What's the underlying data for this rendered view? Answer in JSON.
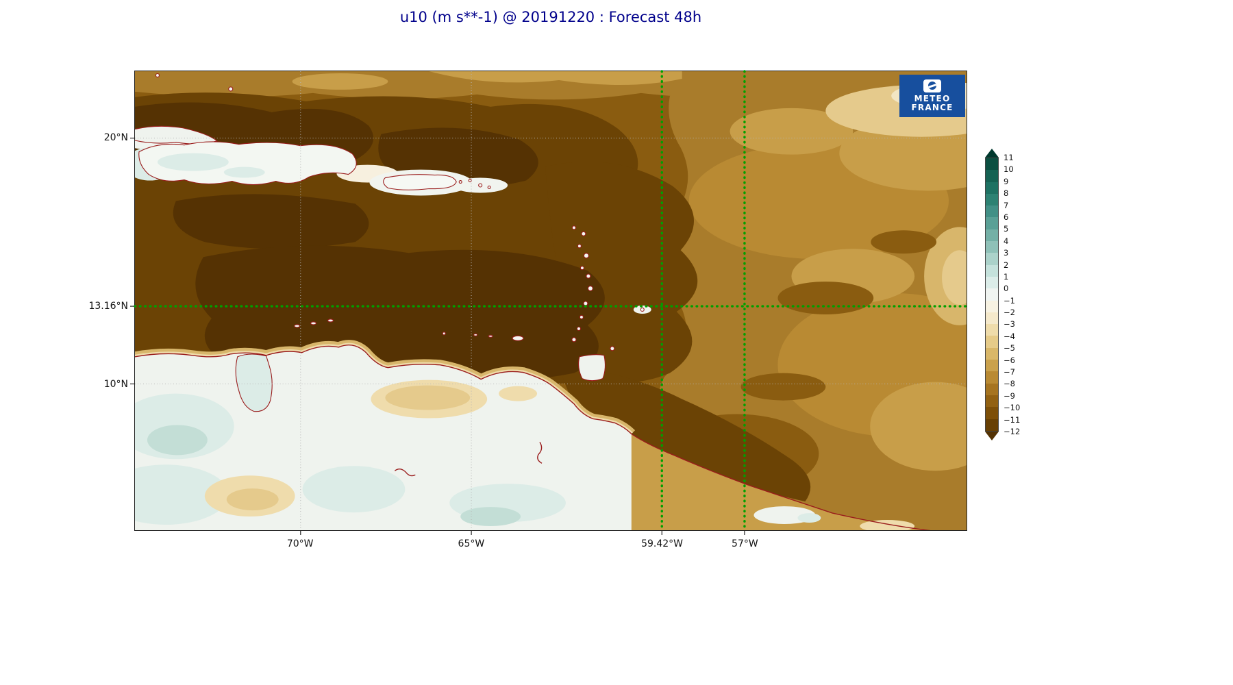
{
  "title": "u10 (m s**-1) @ 20191220 : Forecast 48h",
  "logo": {
    "line1": "METEO",
    "line2": "FRANCE"
  },
  "chart_data": {
    "type": "heatmap",
    "variable": "u10",
    "units": "m s**-1",
    "run_date": "20191220",
    "forecast": "48h",
    "title": "u10 (m s**-1) @ 20191220 : Forecast 48h",
    "lon_range": [
      -74.85,
      -50.5
    ],
    "lat_range": [
      4.05,
      22.72
    ],
    "x_ticks": [
      {
        "value": -70,
        "label": "70°W"
      },
      {
        "value": -65,
        "label": "65°W"
      },
      {
        "value": -59.42,
        "label": "59.42°W"
      },
      {
        "value": -57,
        "label": "57°W"
      }
    ],
    "y_ticks": [
      {
        "value": 20,
        "label": "20°N"
      },
      {
        "value": 13.16,
        "label": "13.16°N"
      },
      {
        "value": 10,
        "label": "10°N"
      }
    ],
    "gridlines": {
      "lons": [
        -70,
        -65
      ],
      "lats": [
        20,
        10
      ]
    },
    "crosshair": {
      "color": "#00a000",
      "lat": 13.16,
      "lons": [
        -59.42,
        -57
      ]
    },
    "colorbar": {
      "ticks": [
        "11",
        "10",
        "9",
        "8",
        "7",
        "6",
        "5",
        "4",
        "3",
        "2",
        "1",
        "0",
        "−1",
        "−2",
        "−3",
        "−4",
        "−5",
        "−6",
        "−7",
        "−8",
        "−9",
        "−10",
        "−11",
        "−12"
      ],
      "over_color": "#00392e",
      "under_color": "#533203",
      "segment_colors": [
        "#0b4f41",
        "#156253",
        "#1e7263",
        "#2d8273",
        "#429086",
        "#5aa096",
        "#74b0a6",
        "#8fc1b8",
        "#abd2ca",
        "#c5e2dc",
        "#dcede9",
        "#f0f4f1",
        "#f7f2e2",
        "#f5e9cb",
        "#efdcab",
        "#e6cb89",
        "#d9b769",
        "#caa14c",
        "#b98a33",
        "#a67420",
        "#926112",
        "#7d4f08",
        "#684003"
      ]
    },
    "field_description": "Filled contours of 10 m zonal wind over the Caribbean and northern South America: strong easterlies (−9 to −12 m/s, dark brown) over the central Caribbean, moderate easterlies (−5 to −8 m/s, tan) over the eastern Atlantic portion, weak winds (−1 to +3 m/s, white/pale teal) over northern South America, Hispaniola and Puerto Rico; coastlines in dark red; green dotted crosshair at 13.16°N with vertical lines at 59.42°W and 57°W."
  }
}
